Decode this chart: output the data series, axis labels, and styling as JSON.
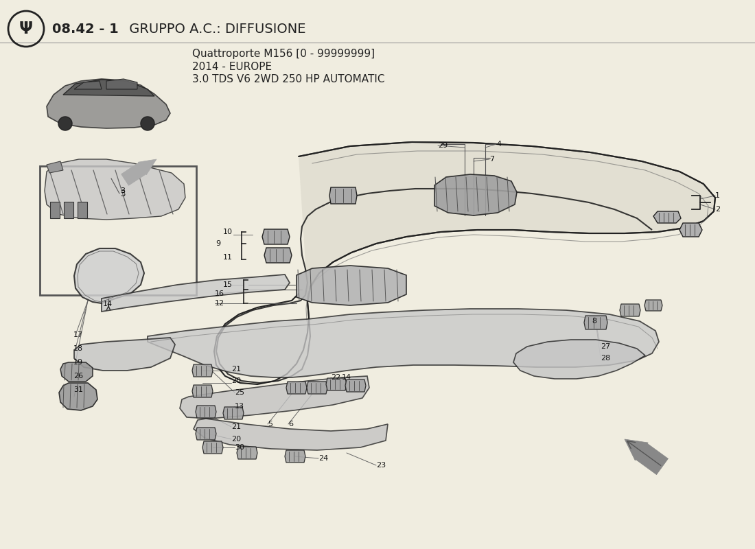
{
  "title_bold": "08.42 - 1",
  "title_normal": " GRUPPO A.C.: DIFFUSIONE",
  "subtitle_line1": "Quattroporte M156 [0 - 99999999]",
  "subtitle_line2": "2014 - EUROPE",
  "subtitle_line3": "3.0 TDS V6 2WD 250 HP AUTOMATIC",
  "bg_color": "#f0ede0",
  "line_color": "#222222",
  "label_color": "#111111"
}
